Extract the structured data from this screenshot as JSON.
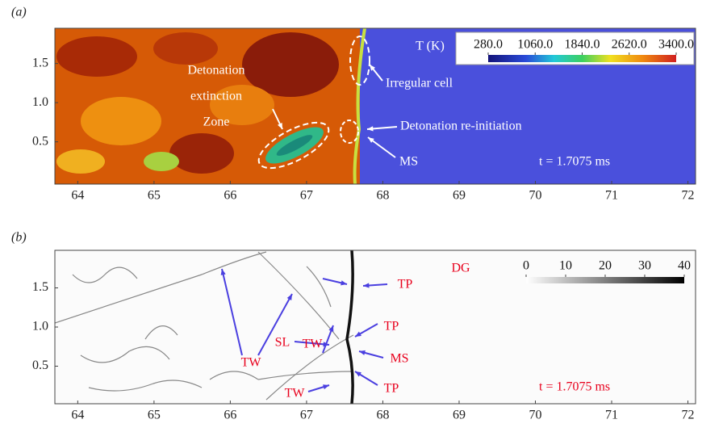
{
  "chart_data": [
    {
      "type": "heatmap",
      "panel_label": "(a)",
      "xlim": [
        63.7,
        72.1
      ],
      "ylim": [
        -0.04,
        1.95
      ],
      "xticks": [
        64,
        65,
        66,
        67,
        68,
        69,
        70,
        71,
        72
      ],
      "yticks": [
        0.5,
        {
          "value": 1,
          "label": "1.0"
        },
        1.5
      ],
      "colorbar": {
        "label": "T (K)",
        "lim": [
          280,
          3400
        ],
        "ticks": [
          {
            "value": 280,
            "label": "280.0"
          },
          {
            "value": 1060,
            "label": "1060.0"
          },
          {
            "value": 1840,
            "label": "1840.0"
          },
          {
            "value": 2620,
            "label": "2620.0"
          },
          {
            "value": 3400,
            "label": "3400.0"
          }
        ]
      },
      "time_label": "t = 1.7075 ms",
      "annotations": [
        "Detonation",
        "extinction",
        "Zone",
        "Irregular cell",
        "Detonation re-initiation",
        "MS"
      ]
    },
    {
      "type": "heatmap",
      "panel_label": "(b)",
      "xlim": [
        63.7,
        72.1
      ],
      "ylim": [
        0.02,
        1.98
      ],
      "xticks": [
        64,
        65,
        66,
        67,
        68,
        69,
        70,
        71,
        72
      ],
      "yticks": [
        0.5,
        {
          "value": 1,
          "label": "1.0"
        },
        1.5
      ],
      "colorbar": {
        "label": "DG",
        "lim": [
          0,
          40
        ],
        "ticks": [
          0,
          10,
          20,
          30,
          40
        ]
      },
      "time_label": "t = 1.7075 ms",
      "annotations": [
        "TW",
        "TW",
        "SL",
        "TW",
        "TP",
        "TP",
        "MS",
        "TP"
      ]
    }
  ]
}
